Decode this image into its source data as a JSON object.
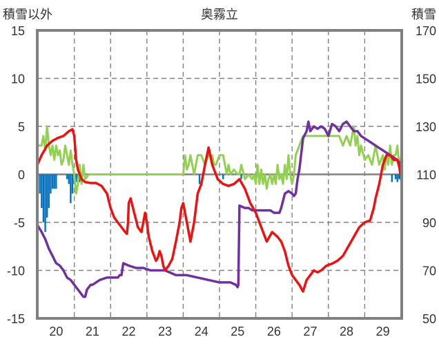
{
  "chart_data": {
    "type": "line",
    "title": "奥霧立",
    "left_axis_label": "積雪以外",
    "right_axis_label": "積雪",
    "x_ticks": [
      "20",
      "21",
      "22",
      "23",
      "24",
      "25",
      "26",
      "27",
      "28",
      "29"
    ],
    "left_ticks": [
      "15",
      "10",
      "5",
      "0",
      "-5",
      "-10",
      "-15"
    ],
    "right_ticks": [
      "170",
      "150",
      "130",
      "110",
      "90",
      "70",
      "50"
    ],
    "ylim_left": [
      -15,
      15
    ],
    "ylim_right": [
      50,
      170
    ],
    "xlim": [
      19.48,
      29.52
    ],
    "grid": true,
    "legend": "none",
    "colors": {
      "temperature": "#ee1111",
      "wind": "#92d050",
      "snow_depth": "#7030a0",
      "precip_bars": "#0070c0",
      "frame": "#808080",
      "grid": "#808080"
    },
    "series": [
      {
        "key": "temperature",
        "axis": "left",
        "x": [
          19.48,
          19.6,
          19.75,
          19.9,
          20.05,
          20.2,
          20.35,
          20.45,
          20.5,
          20.55,
          20.6,
          20.7,
          20.8,
          20.95,
          21.1,
          21.25,
          21.4,
          21.5,
          21.6,
          21.7,
          21.8,
          21.9,
          21.95,
          21.98,
          22.0,
          22.05,
          22.15,
          22.25,
          22.35,
          22.45,
          22.5,
          22.55,
          22.65,
          22.75,
          22.8,
          22.85,
          22.9,
          22.95,
          23.0,
          23.1,
          23.2,
          23.3,
          23.4,
          23.45,
          23.5,
          23.6,
          23.7,
          23.8,
          23.9,
          24.0,
          24.1,
          24.2,
          24.3,
          24.45,
          24.6,
          24.75,
          24.9,
          25.05,
          25.2,
          25.35,
          25.5,
          25.65,
          25.8,
          25.95,
          26.1,
          26.2,
          26.3,
          26.4,
          26.5,
          26.6,
          26.7,
          26.8,
          26.9,
          27.0,
          27.1,
          27.2,
          27.3,
          27.45,
          27.6,
          27.75,
          27.9,
          28.05,
          28.2,
          28.35,
          28.5,
          28.65,
          28.75,
          28.8,
          28.9,
          29.0,
          29.1,
          29.2,
          29.3,
          29.4,
          29.45,
          29.52
        ],
        "y": [
          1.0,
          2.0,
          3.0,
          3.5,
          3.8,
          4.0,
          4.5,
          4.7,
          4.0,
          1.5,
          0.5,
          -0.5,
          -0.8,
          -0.9,
          -0.9,
          -1.2,
          -2.0,
          -3.5,
          -4.5,
          -5.0,
          -5.5,
          -6.0,
          -6.2,
          -5.0,
          -3.0,
          -2.5,
          -4.0,
          -5.5,
          -6.0,
          -4.0,
          -5.0,
          -6.5,
          -8.0,
          -9.0,
          -8.7,
          -8.0,
          -8.5,
          -9.5,
          -10.0,
          -9.5,
          -8.8,
          -7.0,
          -5.0,
          -3.5,
          -3.0,
          -5.0,
          -7.0,
          -5.0,
          -2.0,
          -1.0,
          1.0,
          2.8,
          1.0,
          -0.5,
          -1.0,
          -1.2,
          -1.0,
          -0.5,
          -1.5,
          -3.0,
          -4.0,
          -5.5,
          -7.0,
          -6.0,
          -6.5,
          -7.0,
          -8.0,
          -9.5,
          -10.5,
          -11.0,
          -11.5,
          -12.2,
          -11.0,
          -10.5,
          -10.0,
          -10.2,
          -10.0,
          -9.5,
          -9.3,
          -9.0,
          -8.5,
          -7.5,
          -6.5,
          -5.5,
          -5.0,
          -4.8,
          -3.5,
          -2.5,
          -1.0,
          1.0,
          2.0,
          2.0,
          1.5,
          1.5,
          0.8,
          -0.8
        ]
      },
      {
        "key": "wind",
        "axis": "left",
        "x": [
          19.48,
          19.6,
          19.65,
          19.7,
          19.75,
          19.8,
          19.85,
          19.9,
          19.95,
          20.0,
          20.05,
          20.1,
          20.15,
          20.2,
          20.25,
          20.3,
          20.35,
          20.4,
          20.45,
          20.5,
          20.55,
          20.6,
          20.65,
          20.7,
          20.75,
          20.8,
          20.9,
          21.0,
          21.5,
          22.0,
          23.0,
          23.45,
          23.5,
          23.55,
          23.6,
          23.65,
          23.7,
          23.75,
          23.8,
          23.85,
          23.9,
          24.0,
          24.1,
          24.2,
          24.3,
          24.35,
          24.4,
          24.5,
          24.6,
          24.7,
          24.75,
          24.8,
          24.9,
          25.0,
          25.05,
          25.1,
          25.2,
          25.3,
          25.4,
          25.45,
          25.5,
          25.55,
          25.6,
          25.65,
          25.7,
          25.75,
          25.8,
          25.85,
          25.9,
          25.95,
          26.0,
          26.05,
          26.1,
          26.15,
          26.2,
          26.25,
          26.3,
          26.35,
          26.4,
          26.45,
          26.5,
          26.55,
          26.6,
          26.7,
          26.8,
          26.9,
          27.0,
          27.5,
          27.8,
          27.9,
          28.0,
          28.1,
          28.2,
          28.25,
          28.3,
          28.35,
          28.4,
          28.5,
          28.6,
          28.7,
          28.8,
          28.9,
          29.0,
          29.05,
          29.1,
          29.15,
          29.2,
          29.25,
          29.3,
          29.35,
          29.4,
          29.45,
          29.52
        ],
        "y": [
          3.0,
          3.0,
          4.0,
          2.5,
          5.0,
          3.0,
          2.0,
          3.0,
          1.5,
          3.0,
          2.0,
          2.5,
          1.0,
          1.5,
          3.0,
          2.0,
          1.0,
          2.5,
          1.0,
          0.0,
          -2.0,
          -1.0,
          1.0,
          -1.0,
          1.0,
          -0.5,
          0.0,
          0.0,
          0.0,
          0.0,
          0.0,
          0.0,
          0.0,
          2.0,
          0.5,
          1.0,
          2.0,
          1.0,
          0.0,
          1.0,
          2.0,
          2.0,
          1.0,
          2.0,
          2.0,
          1.0,
          1.0,
          2.0,
          2.0,
          0.0,
          1.0,
          0.0,
          0.5,
          0.0,
          0.0,
          1.0,
          -0.5,
          0.0,
          -0.5,
          0.0,
          -1.0,
          1.0,
          -1.0,
          0.5,
          -1.0,
          0.0,
          -1.5,
          -0.5,
          0.0,
          -1.0,
          0.0,
          -1.0,
          1.0,
          -0.5,
          0.0,
          -1.0,
          1.0,
          -0.5,
          2.0,
          0.0,
          -1.0,
          0.0,
          2.0,
          3.0,
          4.0,
          4.0,
          4.0,
          4.0,
          4.0,
          3.0,
          4.0,
          3.0,
          5.0,
          3.0,
          4.0,
          2.0,
          3.0,
          1.5,
          2.0,
          1.0,
          3.0,
          1.0,
          2.0,
          0.5,
          2.0,
          1.0,
          3.0,
          1.0,
          2.0,
          2.0,
          3.0,
          1.0,
          2.0
        ]
      },
      {
        "key": "snow_depth",
        "axis": "right",
        "x": [
          19.48,
          19.6,
          19.7,
          19.8,
          19.9,
          20.0,
          20.1,
          20.2,
          20.3,
          20.4,
          20.5,
          20.6,
          20.7,
          20.75,
          20.8,
          20.85,
          20.9,
          20.95,
          21.0,
          21.2,
          21.4,
          21.6,
          21.7,
          21.75,
          21.8,
          21.85,
          22.0,
          22.2,
          22.4,
          22.6,
          22.8,
          23.0,
          23.3,
          23.6,
          23.9,
          24.2,
          24.5,
          24.8,
          24.95,
          25.0,
          25.02,
          25.05,
          25.2,
          25.3,
          25.4,
          25.5,
          25.6,
          25.7,
          25.8,
          25.9,
          26.0,
          26.1,
          26.15,
          26.2,
          26.3,
          26.4,
          26.5,
          26.55,
          26.6,
          26.65,
          26.7,
          26.8,
          26.9,
          26.95,
          27.0,
          27.1,
          27.2,
          27.3,
          27.4,
          27.5,
          27.6,
          27.7,
          27.8,
          27.9,
          28.0,
          28.1,
          28.2,
          28.3,
          28.4,
          28.5,
          28.6,
          28.7,
          28.8,
          28.9,
          29.0,
          29.1,
          29.2,
          29.3,
          29.4,
          29.45,
          29.5
        ],
        "y": [
          89,
          86,
          83,
          79,
          76,
          73,
          72,
          70,
          67,
          66,
          64,
          62,
          60,
          59,
          59,
          62,
          63,
          64,
          64,
          66,
          67,
          67,
          67,
          68,
          68,
          73,
          72,
          71,
          71,
          70,
          70,
          70,
          68,
          68,
          67,
          66,
          65,
          65,
          64,
          63,
          64,
          97,
          96,
          96,
          95,
          95,
          95,
          95,
          95,
          95,
          94,
          94,
          94,
          96,
          102,
          103,
          102,
          101,
          102,
          108,
          112,
          125,
          128,
          132,
          128,
          130,
          129,
          130,
          129,
          126,
          131,
          130,
          128,
          131,
          132,
          130,
          128,
          128,
          126,
          125,
          124,
          123,
          122,
          121,
          120,
          119,
          118,
          117,
          116,
          115,
          112
        ]
      }
    ],
    "bars": {
      "key": "precip_bars",
      "axis": "left",
      "x": [
        19.55,
        19.6,
        19.65,
        19.7,
        19.75,
        19.8,
        19.85,
        19.9,
        19.95,
        20.0,
        20.3,
        20.35,
        20.4,
        20.45,
        20.5,
        20.55,
        20.6,
        20.65,
        20.7,
        23.95,
        24.6,
        25.1,
        29.25,
        29.35,
        29.4,
        29.45
      ],
      "y": [
        -2.0,
        -3.5,
        -5.0,
        -6.0,
        -4.5,
        -3.5,
        -2.0,
        -1.5,
        -1.5,
        -1.5,
        -0.5,
        -1.0,
        -3.0,
        -2.0,
        -1.0,
        -0.8,
        -0.5,
        -0.8,
        -0.7,
        -1.0,
        -0.5,
        -0.5,
        -0.8,
        -0.5,
        -0.8,
        -0.5
      ]
    }
  }
}
